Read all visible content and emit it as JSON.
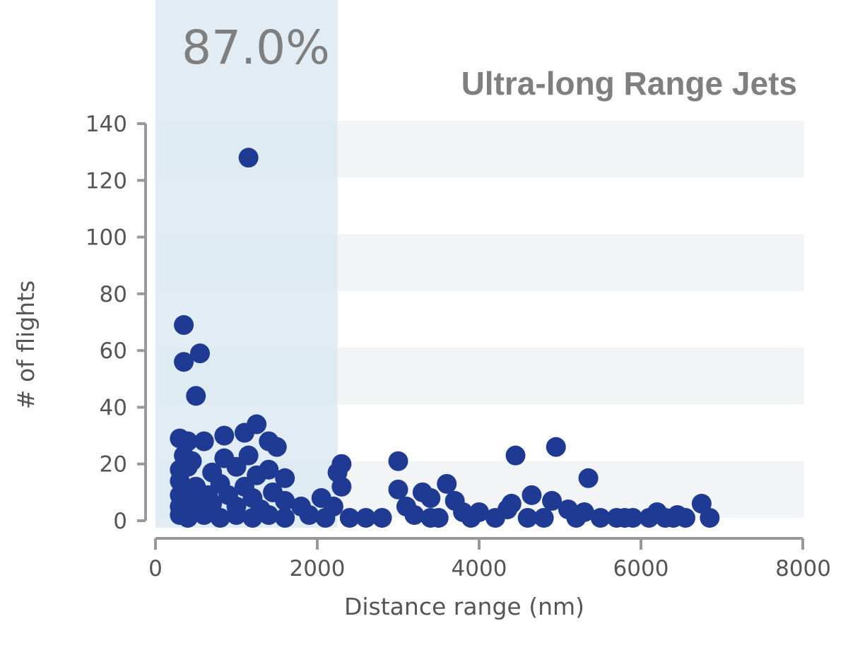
{
  "chart_data": {
    "type": "scatter",
    "title": "Ultra-long Range Jets",
    "xlabel": "Distance range (nm)",
    "ylabel": "# of flights",
    "xlim": [
      0,
      8000
    ],
    "ylim": [
      0,
      140
    ],
    "xticks": [
      "0",
      "2000",
      "4000",
      "6000",
      "8000"
    ],
    "yticks": [
      "0",
      "20",
      "40",
      "60",
      "80",
      "100",
      "120",
      "140"
    ],
    "highlight": {
      "x_range": [
        0,
        2250
      ],
      "label": "87.0%"
    },
    "colors": {
      "point": "#1f3a93",
      "band": "#f2f4f6",
      "highlight": "#dce9f2",
      "axis": "#999999",
      "text": "#555555",
      "title": "#7f7f7f"
    },
    "points": [
      [
        1150,
        128
      ],
      [
        350,
        69
      ],
      [
        350,
        56
      ],
      [
        550,
        59
      ],
      [
        500,
        44
      ],
      [
        300,
        29
      ],
      [
        400,
        28
      ],
      [
        600,
        28
      ],
      [
        850,
        30
      ],
      [
        1100,
        31
      ],
      [
        1250,
        34
      ],
      [
        1400,
        28
      ],
      [
        1500,
        26
      ],
      [
        350,
        23
      ],
      [
        450,
        21
      ],
      [
        850,
        22
      ],
      [
        1150,
        23
      ],
      [
        300,
        18
      ],
      [
        400,
        19
      ],
      [
        700,
        17
      ],
      [
        1000,
        19
      ],
      [
        1250,
        16
      ],
      [
        1400,
        18
      ],
      [
        1600,
        15
      ],
      [
        300,
        14
      ],
      [
        500,
        12
      ],
      [
        800,
        13
      ],
      [
        1100,
        12
      ],
      [
        1450,
        10
      ],
      [
        300,
        9
      ],
      [
        450,
        8
      ],
      [
        650,
        9
      ],
      [
        900,
        9
      ],
      [
        1200,
        8
      ],
      [
        1600,
        7
      ],
      [
        300,
        5
      ],
      [
        500,
        5
      ],
      [
        700,
        6
      ],
      [
        1000,
        5
      ],
      [
        1300,
        4
      ],
      [
        1800,
        5
      ],
      [
        2050,
        8
      ],
      [
        2200,
        5
      ],
      [
        2300,
        12
      ],
      [
        2250,
        17
      ],
      [
        2300,
        20
      ],
      [
        300,
        2
      ],
      [
        400,
        1
      ],
      [
        600,
        2
      ],
      [
        800,
        1
      ],
      [
        1000,
        2
      ],
      [
        1200,
        1
      ],
      [
        1400,
        2
      ],
      [
        1600,
        1
      ],
      [
        1900,
        2
      ],
      [
        2100,
        1
      ],
      [
        2400,
        1
      ],
      [
        2600,
        1
      ],
      [
        3000,
        21
      ],
      [
        3000,
        11
      ],
      [
        3100,
        5
      ],
      [
        3300,
        10
      ],
      [
        3400,
        8
      ],
      [
        3200,
        2
      ],
      [
        3600,
        13
      ],
      [
        3700,
        7
      ],
      [
        3800,
        3
      ],
      [
        3500,
        1
      ],
      [
        3900,
        1
      ],
      [
        4000,
        3
      ],
      [
        4200,
        1
      ],
      [
        4350,
        4
      ],
      [
        4400,
        6
      ],
      [
        4450,
        23
      ],
      [
        4650,
        9
      ],
      [
        4900,
        7
      ],
      [
        4950,
        26
      ],
      [
        5100,
        4
      ],
      [
        5300,
        3
      ],
      [
        5350,
        15
      ],
      [
        4800,
        1
      ],
      [
        5500,
        1
      ],
      [
        5700,
        1
      ],
      [
        5800,
        1
      ],
      [
        6100,
        1
      ],
      [
        6200,
        3
      ],
      [
        6300,
        1
      ],
      [
        6450,
        2
      ],
      [
        6550,
        1
      ],
      [
        6750,
        6
      ],
      [
        6850,
        1
      ],
      [
        2800,
        1
      ],
      [
        3400,
        1
      ],
      [
        4600,
        1
      ],
      [
        5200,
        1
      ],
      [
        5900,
        1
      ],
      [
        6400,
        1
      ]
    ]
  }
}
